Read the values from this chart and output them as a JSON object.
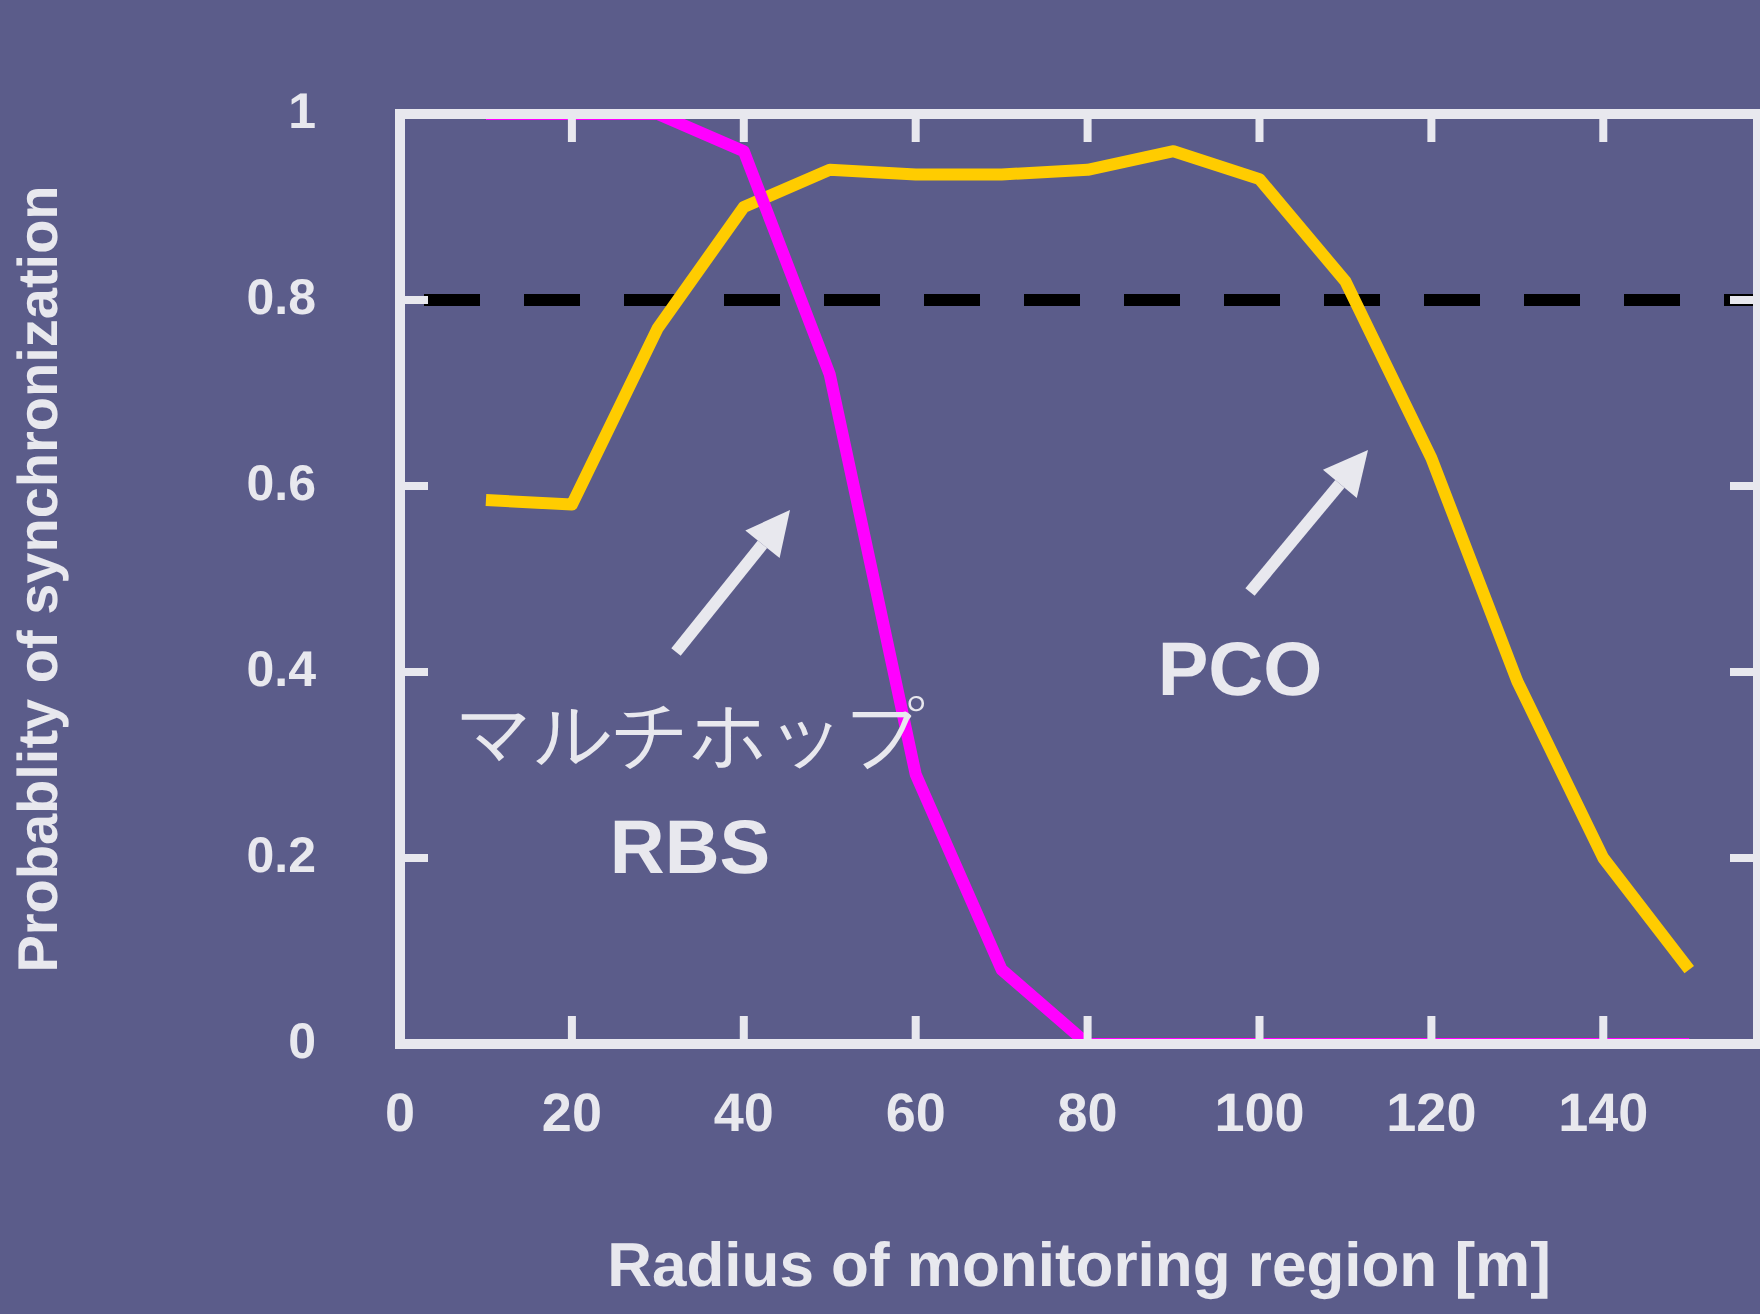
{
  "chart_data": {
    "type": "line",
    "xlabel": "Radius of monitoring region [m]",
    "ylabel": "Probablity of synchronization",
    "x": [
      10,
      20,
      30,
      40,
      50,
      60,
      70,
      80,
      90,
      100,
      110,
      120,
      130,
      140,
      150
    ],
    "series": [
      {
        "color": "#ff00ff",
        "values": [
          1.0,
          1.0,
          1.0,
          0.96,
          0.72,
          0.29,
          0.08,
          0,
          0,
          0,
          0,
          0,
          0,
          0,
          0
        ]
      },
      {
        "color": "#ffcc00",
        "values": [
          0.585,
          0.58,
          0.77,
          0.9,
          0.94,
          0.935,
          0.935,
          0.94,
          0.96,
          0.93,
          0.82,
          0.63,
          0.39,
          0.2,
          0.08
        ]
      }
    ],
    "xlim": [
      0,
      158
    ],
    "ylim": [
      0,
      1
    ],
    "xticks": [
      0,
      20,
      40,
      60,
      80,
      100,
      120,
      140
    ],
    "yticks": [
      0,
      0.2,
      0.4,
      0.6,
      0.8,
      1
    ],
    "ref_lines": [
      {
        "axis": "y",
        "value": 0.8,
        "color": "#000000",
        "line_style": "dashed"
      }
    ],
    "annotations": [
      "マルチホップ\nRBS",
      "PCO"
    ],
    "grid": false,
    "legend": false,
    "marker": "none",
    "line_style": "solid"
  }
}
